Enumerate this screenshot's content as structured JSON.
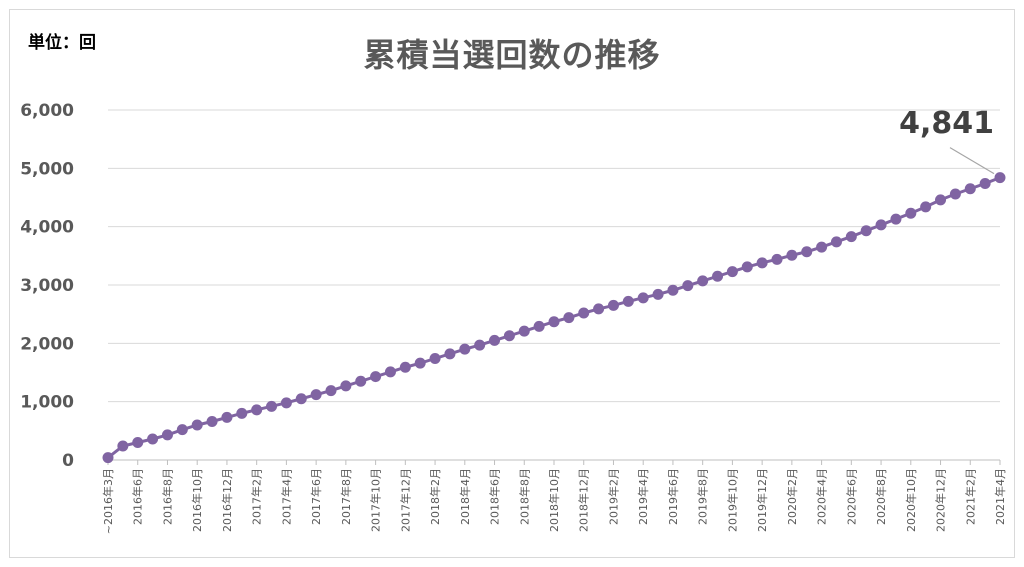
{
  "chart_data": {
    "type": "line",
    "unit_label": "単位：回",
    "title": "累積当選回数の推移",
    "ylim": [
      0,
      6000
    ],
    "yticks": [
      "0",
      "1,000",
      "2,000",
      "3,000",
      "4,000",
      "5,000",
      "6,000"
    ],
    "ytick_values": [
      0,
      1000,
      2000,
      3000,
      4000,
      5000,
      6000
    ],
    "xtick_labels": [
      "~2016年3月",
      "2016年6月",
      "2016年8月",
      "2016年10月",
      "2016年12月",
      "2017年2月",
      "2017年4月",
      "2017年6月",
      "2017年8月",
      "2017年10月",
      "2017年12月",
      "2018年2月",
      "2018年4月",
      "2018年6月",
      "2018年8月",
      "2018年10月",
      "2018年12月",
      "2019年2月",
      "2019年4月",
      "2019年6月",
      "2019年8月",
      "2019年10月",
      "2019年12月",
      "2020年2月",
      "2020年4月",
      "2020年6月",
      "2020年8月",
      "2020年10月",
      "2020年12月",
      "2021年2月",
      "2021年4月"
    ],
    "series": [
      {
        "color": "#8064a2",
        "values": [
          40,
          240,
          300,
          360,
          430,
          520,
          600,
          660,
          730,
          800,
          860,
          920,
          980,
          1050,
          1120,
          1190,
          1270,
          1350,
          1430,
          1510,
          1590,
          1660,
          1740,
          1820,
          1900,
          1970,
          2050,
          2130,
          2210,
          2290,
          2370,
          2440,
          2520,
          2590,
          2650,
          2720,
          2780,
          2840,
          2910,
          2990,
          3070,
          3150,
          3230,
          3310,
          3380,
          3440,
          3510,
          3570,
          3650,
          3740,
          3830,
          3930,
          4030,
          4130,
          4230,
          4340,
          4460,
          4560,
          4650,
          4740,
          4841
        ]
      }
    ],
    "end_label": "4,841",
    "grid": true,
    "legend": "none"
  }
}
